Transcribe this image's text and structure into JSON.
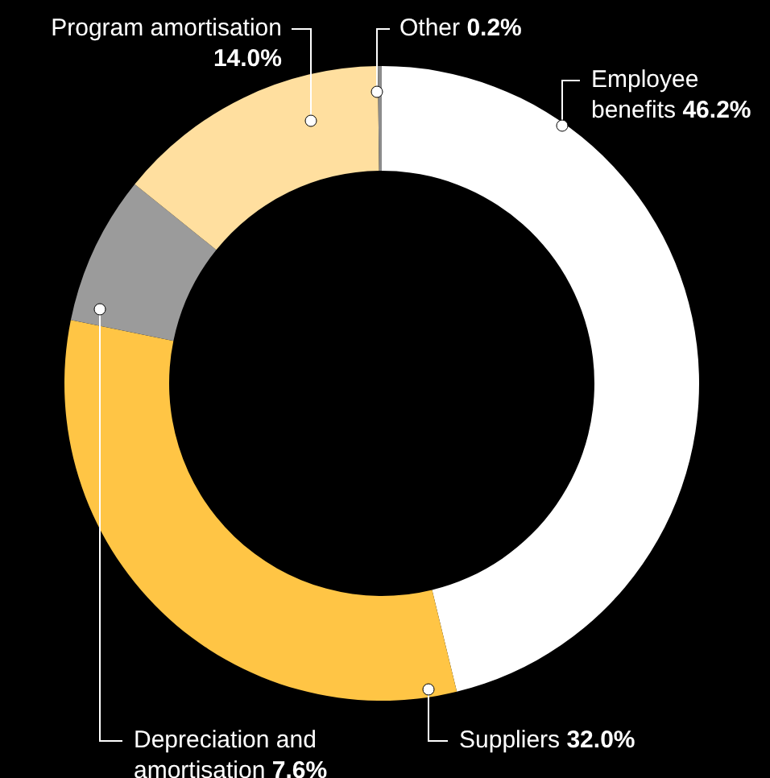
{
  "chart_data": {
    "type": "donut",
    "categories": [
      "Employee benefits",
      "Suppliers",
      "Depreciation and amortisation",
      "Program amortisation",
      "Other"
    ],
    "values": [
      46.2,
      32.0,
      7.6,
      14.0,
      0.2
    ],
    "value_labels": [
      "46.2%",
      "32.0%",
      "7.6%",
      "14.0%",
      "0.2%"
    ],
    "colors": [
      "#ffffff",
      "#ffc545",
      "#9b9b9b",
      "#ffdf9f",
      "#8c8c8c"
    ]
  }
}
